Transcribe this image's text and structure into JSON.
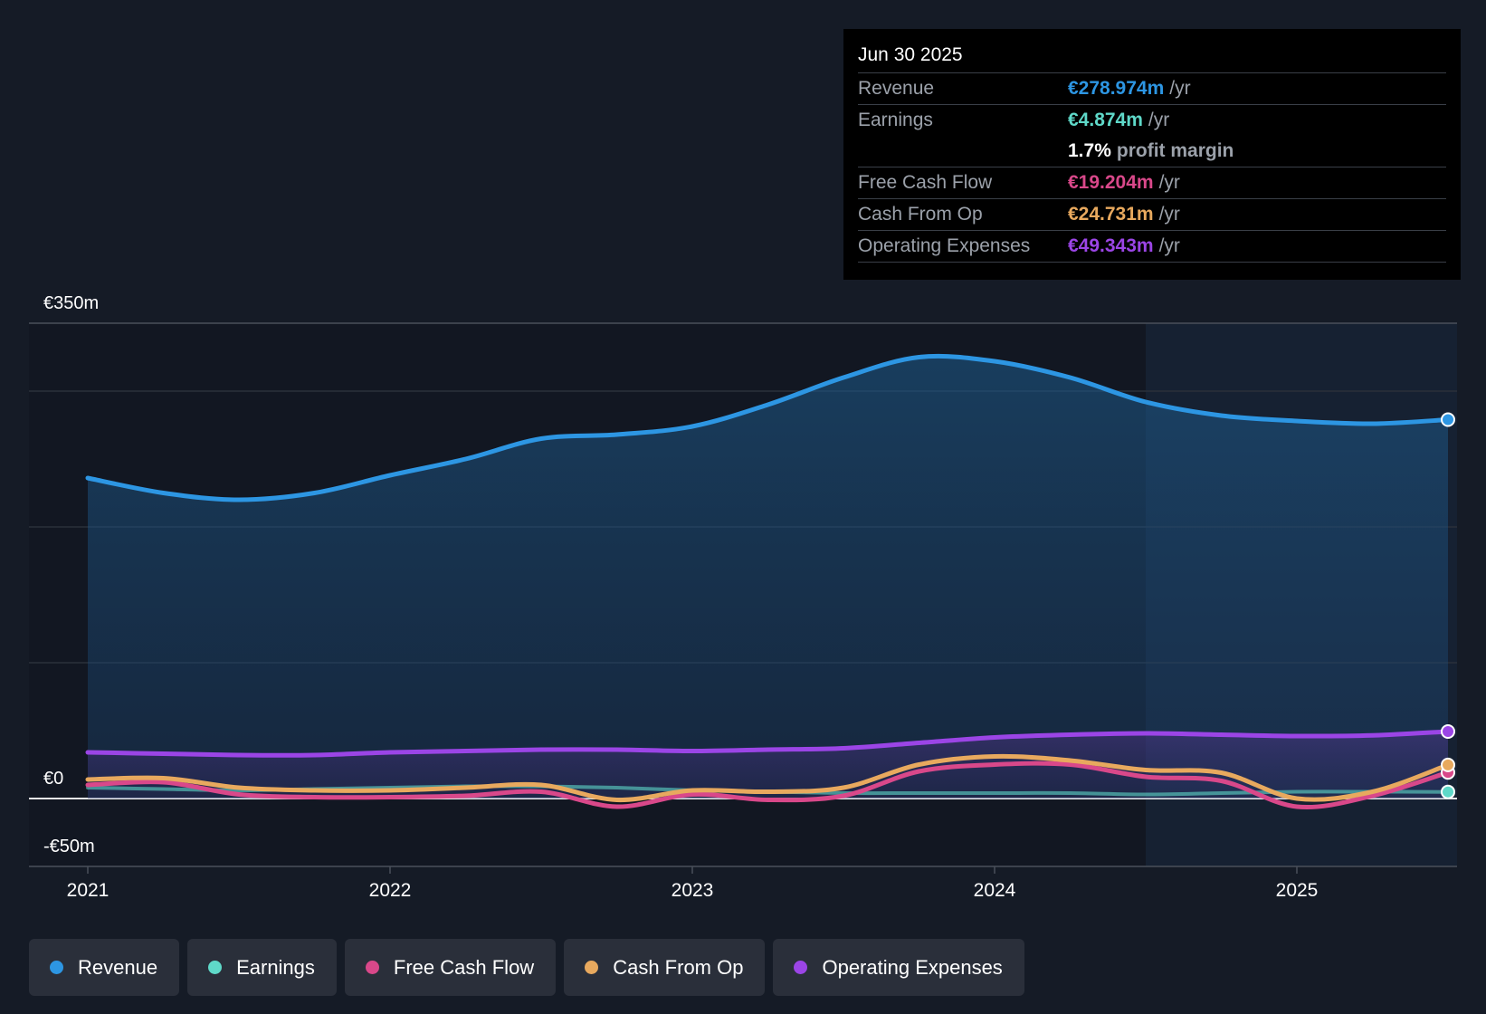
{
  "chart_data": {
    "type": "area",
    "title": "",
    "xlabel": "",
    "ylabel": "",
    "ylim": [
      -50,
      350
    ],
    "y_tick_labels": [
      "€350m",
      "€0",
      "-€50m"
    ],
    "y_tick_values": [
      350,
      0,
      -50
    ],
    "gridlines_at": [
      350,
      300,
      200,
      100
    ],
    "x_tick_labels": [
      "2021",
      "2022",
      "2023",
      "2024",
      "2025"
    ],
    "x_tick_values": [
      2021,
      2022,
      2023,
      2024,
      2025
    ],
    "xlim": [
      2020.81,
      2025.5
    ],
    "highlight_start": 2024.5,
    "series": [
      {
        "name": "Revenue",
        "color": "#2d96e3",
        "filled": true,
        "x": [
          2021.0,
          2021.25,
          2021.5,
          2021.75,
          2022.0,
          2022.25,
          2022.5,
          2022.75,
          2023.0,
          2023.25,
          2023.5,
          2023.75,
          2024.0,
          2024.25,
          2024.5,
          2024.75,
          2025.0,
          2025.25,
          2025.5
        ],
        "values": [
          236,
          225,
          220,
          225,
          238,
          250,
          265,
          268,
          274,
          290,
          310,
          325,
          322,
          310,
          292,
          282,
          278,
          276,
          279
        ]
      },
      {
        "name": "Earnings",
        "color": "#5fd9c9",
        "filled": false,
        "x": [
          2021.0,
          2021.25,
          2021.5,
          2021.75,
          2022.0,
          2022.25,
          2022.5,
          2022.75,
          2023.0,
          2023.25,
          2023.5,
          2023.75,
          2024.0,
          2024.25,
          2024.5,
          2024.75,
          2025.0,
          2025.25,
          2025.5
        ],
        "values": [
          8,
          7,
          6,
          7,
          8,
          9,
          9,
          8,
          6,
          5,
          4,
          4,
          4,
          4,
          3,
          4,
          5,
          5,
          4.874
        ]
      },
      {
        "name": "Free Cash Flow",
        "color": "#d9488a",
        "filled": false,
        "x": [
          2021.0,
          2021.25,
          2021.5,
          2021.75,
          2022.0,
          2022.25,
          2022.5,
          2022.75,
          2023.0,
          2023.25,
          2023.5,
          2023.75,
          2024.0,
          2024.25,
          2024.5,
          2024.75,
          2025.0,
          2025.25,
          2025.5
        ],
        "values": [
          10,
          12,
          3,
          1,
          1,
          2,
          5,
          -6,
          3,
          -1,
          2,
          20,
          25,
          25,
          16,
          13,
          -6,
          2,
          19.204
        ]
      },
      {
        "name": "Cash From Op",
        "color": "#e8a95e",
        "filled": false,
        "x": [
          2021.0,
          2021.25,
          2021.5,
          2021.75,
          2022.0,
          2022.25,
          2022.5,
          2022.75,
          2023.0,
          2023.25,
          2023.5,
          2023.75,
          2024.0,
          2024.25,
          2024.5,
          2024.75,
          2025.0,
          2025.25,
          2025.5
        ],
        "values": [
          14,
          15,
          8,
          6,
          6,
          8,
          10,
          -1,
          6,
          5,
          8,
          25,
          31,
          28,
          21,
          19,
          0,
          5,
          24.731
        ]
      },
      {
        "name": "Operating Expenses",
        "color": "#9b45e6",
        "filled": true,
        "x": [
          2021.0,
          2021.25,
          2021.5,
          2021.75,
          2022.0,
          2022.25,
          2022.5,
          2022.75,
          2023.0,
          2023.25,
          2023.5,
          2023.75,
          2024.0,
          2024.25,
          2024.5,
          2024.75,
          2025.0,
          2025.25,
          2025.5
        ],
        "values": [
          34,
          33,
          32,
          32,
          34,
          35,
          36,
          36,
          35,
          36,
          37,
          41,
          45,
          47,
          48,
          47,
          46,
          46.5,
          49.343
        ]
      }
    ],
    "legend_placement": "bottom-left",
    "grid": true
  },
  "tooltip": {
    "date": "Jun 30 2025",
    "rows": [
      {
        "label": "Revenue",
        "value": "€278.974m",
        "unit": "/yr",
        "color": "#2d96e3"
      },
      {
        "label": "Earnings",
        "value": "€4.874m",
        "unit": "/yr",
        "color": "#5fd9c9"
      },
      {
        "label": "",
        "value": "1.7%",
        "unit": "profit margin",
        "color": "#ffffff"
      },
      {
        "label": "Free Cash Flow",
        "value": "€19.204m",
        "unit": "/yr",
        "color": "#d9488a"
      },
      {
        "label": "Cash From Op",
        "value": "€24.731m",
        "unit": "/yr",
        "color": "#e8a95e"
      },
      {
        "label": "Operating Expenses",
        "value": "€49.343m",
        "unit": "/yr",
        "color": "#9b45e6"
      }
    ]
  },
  "legend": [
    {
      "label": "Revenue",
      "color": "#2d96e3"
    },
    {
      "label": "Earnings",
      "color": "#5fd9c9"
    },
    {
      "label": "Free Cash Flow",
      "color": "#d9488a"
    },
    {
      "label": "Cash From Op",
      "color": "#e8a95e"
    },
    {
      "label": "Operating Expenses",
      "color": "#9b45e6"
    }
  ]
}
